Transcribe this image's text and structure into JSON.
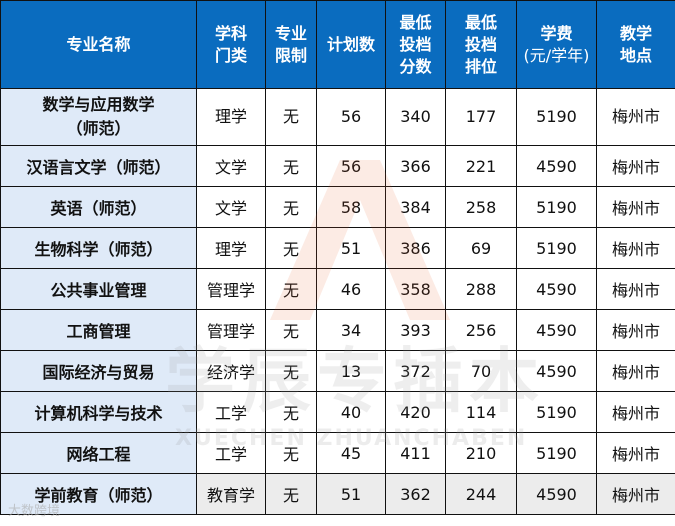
{
  "headers": {
    "name": "专业名称",
    "category": [
      "学科",
      "门类"
    ],
    "limit": [
      "专业",
      "限制"
    ],
    "plan": "计划数",
    "min_score": [
      "最低",
      "投档",
      "分数"
    ],
    "min_rank": [
      "最低",
      "投档",
      "排位"
    ],
    "fee": [
      "学费",
      "(元/学年)"
    ],
    "location": [
      "教学",
      "地点"
    ]
  },
  "rows": [
    {
      "name": [
        "数学与应用数学",
        "（师范）"
      ],
      "category": "理学",
      "limit": "无",
      "plan": "56",
      "score": "340",
      "rank": "177",
      "fee": "5190",
      "location": "梅州市"
    },
    {
      "name": [
        "汉语言文学（师范）"
      ],
      "category": "文学",
      "limit": "无",
      "plan": "56",
      "score": "366",
      "rank": "221",
      "fee": "4590",
      "location": "梅州市"
    },
    {
      "name": [
        "英语（师范）"
      ],
      "category": "文学",
      "limit": "无",
      "plan": "58",
      "score": "384",
      "rank": "258",
      "fee": "5190",
      "location": "梅州市"
    },
    {
      "name": [
        "生物科学（师范）"
      ],
      "category": "理学",
      "limit": "无",
      "plan": "51",
      "score": "386",
      "rank": "69",
      "fee": "5190",
      "location": "梅州市"
    },
    {
      "name": [
        "公共事业管理"
      ],
      "category": "管理学",
      "limit": "无",
      "plan": "46",
      "score": "358",
      "rank": "288",
      "fee": "4590",
      "location": "梅州市"
    },
    {
      "name": [
        "工商管理"
      ],
      "category": "管理学",
      "limit": "无",
      "plan": "34",
      "score": "393",
      "rank": "256",
      "fee": "4590",
      "location": "梅州市"
    },
    {
      "name": [
        "国际经济与贸易"
      ],
      "category": "经济学",
      "limit": "无",
      "plan": "13",
      "score": "372",
      "rank": "70",
      "fee": "4590",
      "location": "梅州市"
    },
    {
      "name": [
        "计算机科学与技术"
      ],
      "category": "工学",
      "limit": "无",
      "plan": "40",
      "score": "420",
      "rank": "114",
      "fee": "5190",
      "location": "梅州市"
    },
    {
      "name": [
        "网络工程"
      ],
      "category": "工学",
      "limit": "无",
      "plan": "45",
      "score": "411",
      "rank": "210",
      "fee": "5190",
      "location": "梅州市"
    },
    {
      "name": [
        "学前教育（师范）"
      ],
      "category": "教育学",
      "limit": "无",
      "plan": "51",
      "score": "362",
      "rank": "244",
      "fee": "4590",
      "location": "梅州市"
    }
  ],
  "watermark": {
    "cn": "学辰专插本",
    "en": "XUECHEN ZHUANCHABEN",
    "logo": "大数跨境"
  },
  "colors": {
    "header_bg": "#0a6cbf",
    "name_col_bg": "#dfeaf8"
  }
}
